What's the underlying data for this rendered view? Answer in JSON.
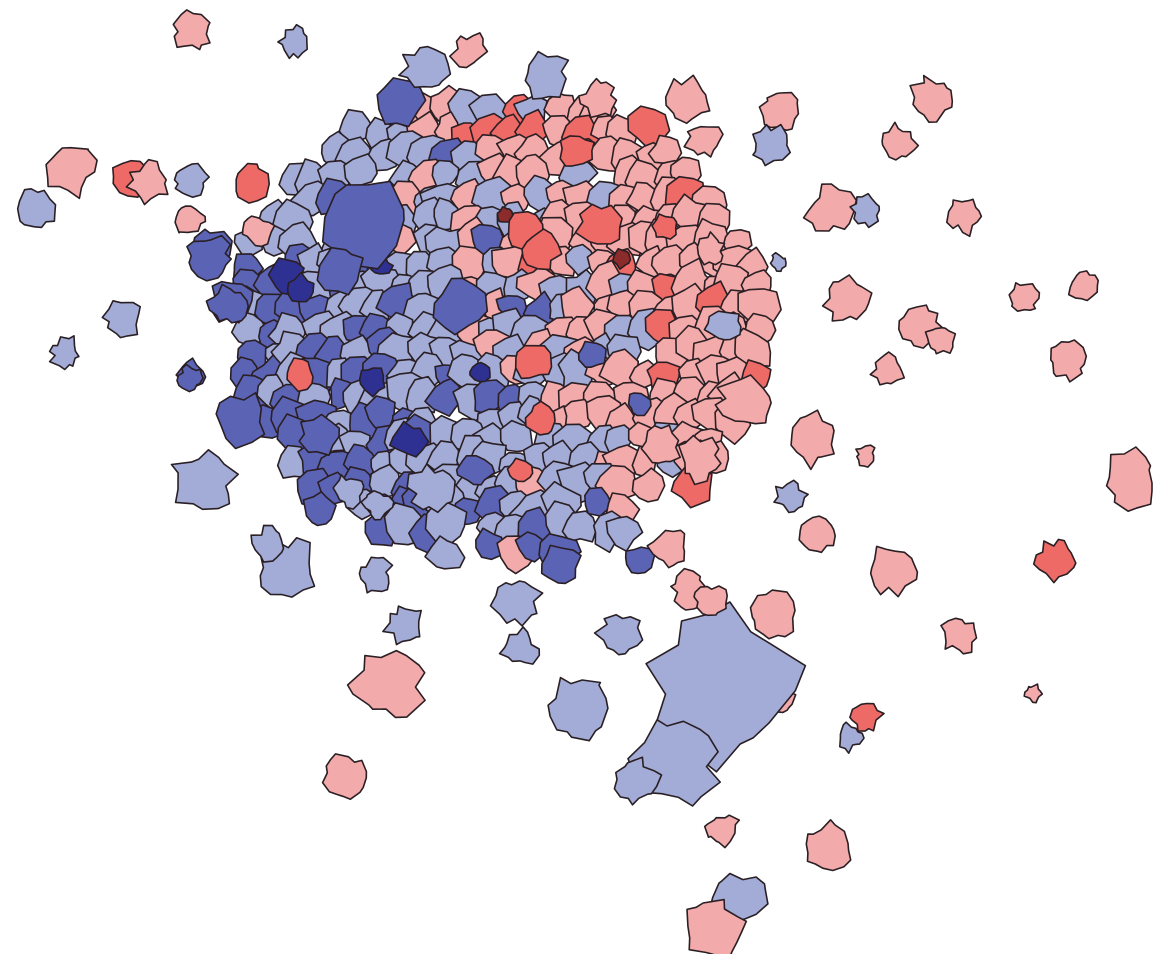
{
  "map": {
    "palette": {
      "dark_blue": "#2e3192",
      "mid_blue": "#5b63b5",
      "light_blue": "#a2acd6",
      "light_red": "#f2aaaa",
      "mid_red": "#ee6a66",
      "dark_red": "#8b2b2b"
    },
    "classes": [
      "dark_blue",
      "mid_blue",
      "light_blue",
      "light_red",
      "mid_red",
      "dark_red"
    ]
  }
}
